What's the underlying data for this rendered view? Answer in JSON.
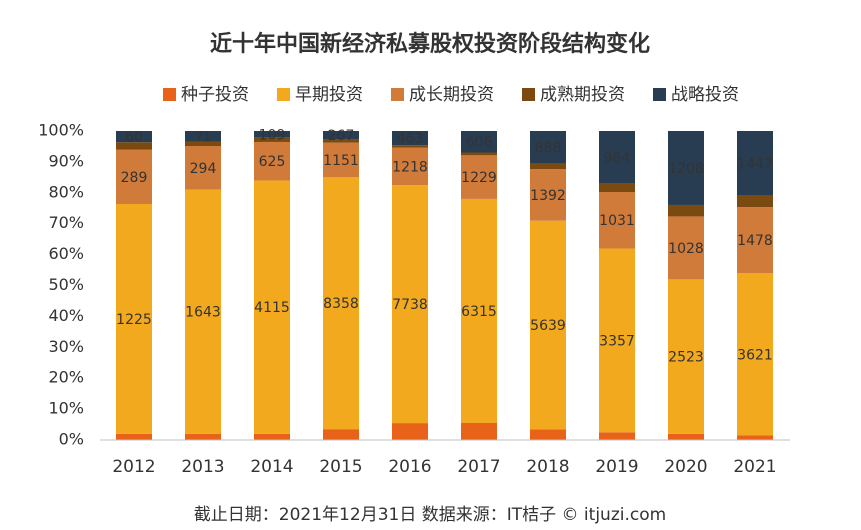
{
  "chart_data": {
    "type": "stacked_percent_bar",
    "title": "近十年中国新经济私募股权投资阶段结构变化",
    "footnote": "截止日期：2021年12月31日    数据来源：IT桔子 © itjuzi.com",
    "categories": [
      "2012",
      "2013",
      "2014",
      "2015",
      "2016",
      "2017",
      "2018",
      "2019",
      "2020",
      "2021"
    ],
    "series": [
      {
        "name": "种子投资",
        "color": "#e8621a",
        "values": [
          33,
          42,
          100,
          360,
          550,
          480,
          290,
          140,
          100,
          100
        ]
      },
      {
        "name": "早期投资",
        "color": "#f3a91d",
        "labels": true,
        "values": [
          1225,
          1643,
          4115,
          8358,
          7738,
          6315,
          5639,
          3357,
          2523,
          3621
        ]
      },
      {
        "name": "成长期投资",
        "color": "#d17b3b",
        "labels": true,
        "values": [
          289,
          294,
          625,
          1151,
          1218,
          1229,
          1392,
          1031,
          1028,
          1478
        ]
      },
      {
        "name": "成熟期投资",
        "color": "#7a4a10",
        "values": [
          40,
          30,
          69,
          119,
          81,
          80,
          145,
          150,
          187,
          251
        ]
      },
      {
        "name": "战略投资",
        "color": "#293d52",
        "labels": true,
        "values": [
          60,
          71,
          109,
          267,
          463,
          606,
          888,
          964,
          1208,
          1447
        ]
      }
    ],
    "ylim": [
      0,
      100
    ],
    "yticks": [
      {
        "value": 0,
        "label": "0%"
      },
      {
        "value": 10,
        "label": "10%"
      },
      {
        "value": 20,
        "label": "20%"
      },
      {
        "value": 30,
        "label": "30%"
      },
      {
        "value": 40,
        "label": "40%"
      },
      {
        "value": 50,
        "label": "50%"
      },
      {
        "value": 60,
        "label": "60%"
      },
      {
        "value": 70,
        "label": "70%"
      },
      {
        "value": 80,
        "label": "80%"
      },
      {
        "value": 90,
        "label": "90%"
      },
      {
        "value": 100,
        "label": "100%"
      }
    ],
    "legend": "top"
  }
}
